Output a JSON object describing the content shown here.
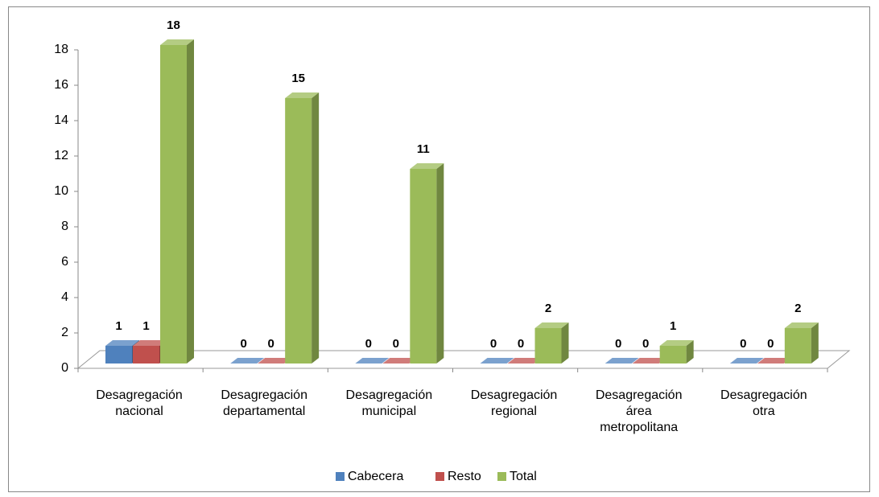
{
  "chart_data": {
    "type": "bar3d",
    "categories": [
      [
        "Desagregación",
        "nacional"
      ],
      [
        "Desagregación",
        "departamental"
      ],
      [
        "Desagregación",
        "municipal"
      ],
      [
        "Desagregación",
        "regional"
      ],
      [
        "Desagregación",
        "área",
        "metropolitana"
      ],
      [
        "Desagregación",
        "otra"
      ]
    ],
    "series": [
      {
        "name": "Cabecera",
        "color": "#4f81bd",
        "values": [
          1,
          0,
          0,
          0,
          0,
          0
        ]
      },
      {
        "name": "Resto",
        "color": "#c0504d",
        "values": [
          1,
          0,
          0,
          0,
          0,
          0
        ]
      },
      {
        "name": "Total",
        "color": "#9bbb59",
        "values": [
          18,
          15,
          11,
          2,
          1,
          2
        ]
      }
    ],
    "ylim": [
      0,
      18
    ],
    "yticks": [
      0,
      2,
      4,
      6,
      8,
      10,
      12,
      14,
      16,
      18
    ],
    "legend": "bottom",
    "data_labels": true
  }
}
